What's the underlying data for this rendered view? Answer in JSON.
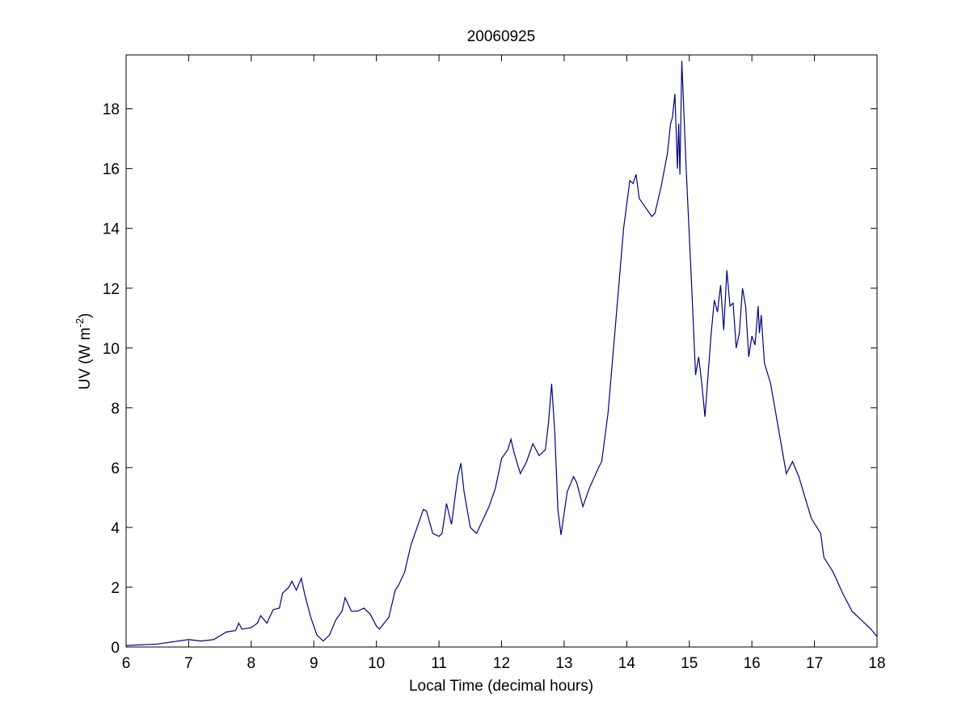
{
  "chart_data": {
    "type": "line",
    "title": "20060925",
    "xlabel": "Local Time (decimal hours)",
    "ylabel": [
      "UV (W m",
      "-2",
      ")"
    ],
    "xlim": [
      6,
      18
    ],
    "xticks": [
      6,
      7,
      8,
      9,
      10,
      11,
      12,
      13,
      14,
      15,
      16,
      17,
      18
    ],
    "ylim": [
      0,
      19.8
    ],
    "yticks": [
      0,
      2,
      4,
      6,
      8,
      10,
      12,
      14,
      16,
      18
    ],
    "series": [
      {
        "color": "#000080",
        "x": [
          6.0,
          6.5,
          7.0,
          7.2,
          7.4,
          7.6,
          7.75,
          7.8,
          7.85,
          8.0,
          8.1,
          8.15,
          8.25,
          8.35,
          8.45,
          8.5,
          8.6,
          8.65,
          8.72,
          8.8,
          8.85,
          8.95,
          9.05,
          9.15,
          9.25,
          9.35,
          9.45,
          9.5,
          9.6,
          9.7,
          9.8,
          9.9,
          10.0,
          10.05,
          10.2,
          10.3,
          10.35,
          10.45,
          10.55,
          10.65,
          10.75,
          10.8,
          10.9,
          11.0,
          11.05,
          11.12,
          11.2,
          11.3,
          11.35,
          11.4,
          11.5,
          11.6,
          11.8,
          11.9,
          12.0,
          12.1,
          12.15,
          12.2,
          12.3,
          12.4,
          12.5,
          12.6,
          12.7,
          12.75,
          12.8,
          12.85,
          12.9,
          12.95,
          13.05,
          13.15,
          13.2,
          13.3,
          13.4,
          13.55,
          13.6,
          13.7,
          13.85,
          13.95,
          14.05,
          14.1,
          14.15,
          14.2,
          14.3,
          14.4,
          14.45,
          14.55,
          14.65,
          14.7,
          14.73,
          14.77,
          14.81,
          14.83,
          14.85,
          14.88,
          14.95,
          15.05,
          15.1,
          15.15,
          15.2,
          15.25,
          15.35,
          15.4,
          15.45,
          15.5,
          15.55,
          15.6,
          15.65,
          15.7,
          15.75,
          15.8,
          15.85,
          15.9,
          15.95,
          16.0,
          16.05,
          16.1,
          16.12,
          16.15,
          16.2,
          16.3,
          16.45,
          16.55,
          16.65,
          16.75,
          16.85,
          16.95,
          17.1,
          17.15,
          17.3,
          17.45,
          17.6,
          17.75,
          17.9,
          18.0
        ],
        "values": [
          0.05,
          0.1,
          0.25,
          0.2,
          0.25,
          0.5,
          0.55,
          0.8,
          0.6,
          0.65,
          0.8,
          1.05,
          0.8,
          1.25,
          1.3,
          1.8,
          2.0,
          2.2,
          1.9,
          2.3,
          1.8,
          1.0,
          0.4,
          0.2,
          0.4,
          0.9,
          1.2,
          1.65,
          1.2,
          1.2,
          1.3,
          1.1,
          0.7,
          0.6,
          1.0,
          1.9,
          2.05,
          2.5,
          3.4,
          4.0,
          4.6,
          4.55,
          3.8,
          3.7,
          3.8,
          4.8,
          4.1,
          5.7,
          6.15,
          5.2,
          4.0,
          3.8,
          4.7,
          5.3,
          6.3,
          6.6,
          6.95,
          6.5,
          5.8,
          6.2,
          6.8,
          6.4,
          6.6,
          7.5,
          8.8,
          7.2,
          4.6,
          3.75,
          5.2,
          5.7,
          5.5,
          4.7,
          5.3,
          6.0,
          6.2,
          7.8,
          11.5,
          14.0,
          15.6,
          15.5,
          15.8,
          15.0,
          14.7,
          14.4,
          14.5,
          15.4,
          16.5,
          17.5,
          17.7,
          18.5,
          16.0,
          17.5,
          15.8,
          19.6,
          16.0,
          11.5,
          9.1,
          9.7,
          8.8,
          7.7,
          10.5,
          11.6,
          11.2,
          12.1,
          10.6,
          12.6,
          11.4,
          11.5,
          10.0,
          10.5,
          12.0,
          11.4,
          9.7,
          10.4,
          10.1,
          11.4,
          10.5,
          11.1,
          9.5,
          8.8,
          7.0,
          5.8,
          6.2,
          5.7,
          5.0,
          4.3,
          3.8,
          3.0,
          2.5,
          1.8,
          1.2,
          0.9,
          0.6,
          0.35
        ]
      }
    ]
  }
}
